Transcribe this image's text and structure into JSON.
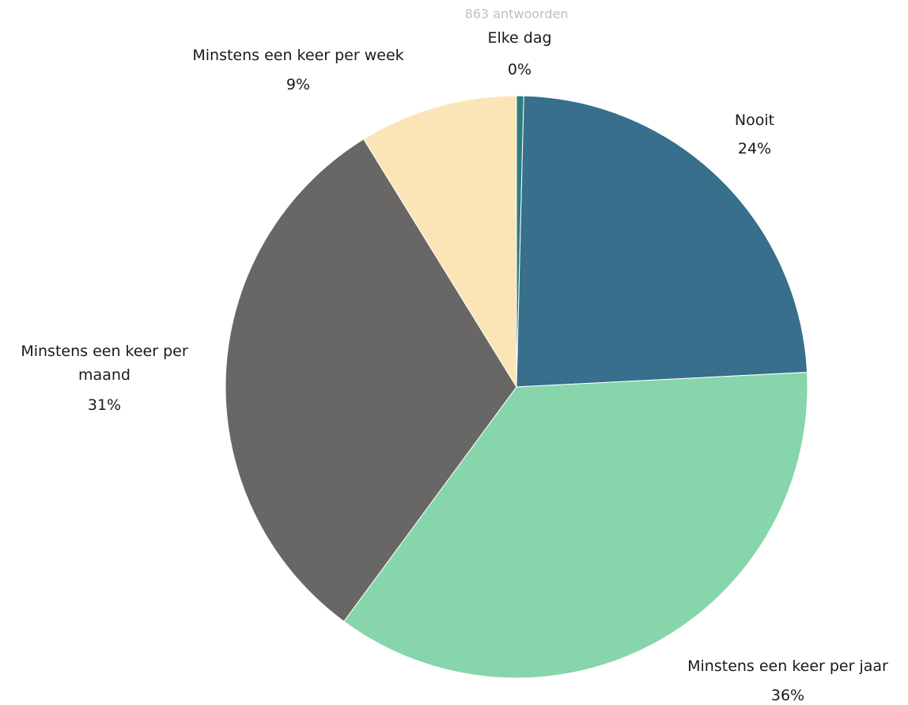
{
  "chart_data": {
    "type": "pie",
    "title": "",
    "subtitle": "863 antwoorden",
    "slices": [
      {
        "label": "Elke dag",
        "value": 0.4,
        "display": "0%",
        "color": "#2e7d7d"
      },
      {
        "label": "Nooit",
        "value": 23.8,
        "display": "24%",
        "color": "#376f8c"
      },
      {
        "label": "Minstens een keer per jaar",
        "value": 35.9,
        "display": "36%",
        "color": "#86d5ab"
      },
      {
        "label": "Minstens een keer per maand",
        "value": 31.1,
        "display": "31%",
        "color": "#696765"
      },
      {
        "label": "Minstens een keer per week",
        "value": 8.8,
        "display": "9%",
        "color": "#fbe5b7"
      }
    ],
    "start_angle_deg": 0,
    "direction": "clockwise",
    "legend": "none"
  }
}
